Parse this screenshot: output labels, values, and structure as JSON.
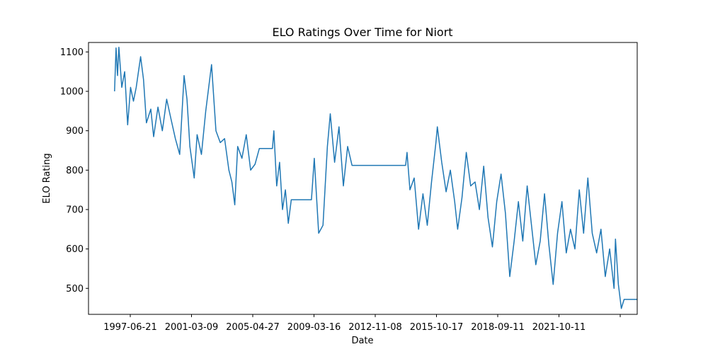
{
  "chart_data": {
    "type": "line",
    "title": "ELO Ratings Over Time for Niort",
    "xlabel": "Date",
    "ylabel": "ELO Rating",
    "x_tick_labels": [
      "1997-06-21",
      "2001-03-09",
      "2005-04-27",
      "2009-03-16",
      "2012-11-08",
      "2015-10-17",
      "2018-09-11",
      "2021-10-11",
      ""
    ],
    "y_ticks": [
      500,
      600,
      700,
      800,
      900,
      1000,
      1100
    ],
    "ylim": [
      434,
      1124
    ],
    "xlim": [
      "1994-06-01",
      "2026-01-01"
    ],
    "grid": false,
    "series": [
      {
        "color": "#1f77b4",
        "points": [
          [
            "1995-12-01",
            1000
          ],
          [
            "1996-01-01",
            1110
          ],
          [
            "1996-02-01",
            1040
          ],
          [
            "1996-03-01",
            1112
          ],
          [
            "1996-05-01",
            1010
          ],
          [
            "1996-07-01",
            1050
          ],
          [
            "1996-09-01",
            915
          ],
          [
            "1996-11-01",
            1010
          ],
          [
            "1997-01-01",
            975
          ],
          [
            "1997-03-01",
            1010
          ],
          [
            "1997-06-01",
            1088
          ],
          [
            "1997-08-01",
            1030
          ],
          [
            "1997-10-01",
            920
          ],
          [
            "1998-01-01",
            955
          ],
          [
            "1998-03-01",
            885
          ],
          [
            "1998-06-01",
            960
          ],
          [
            "1998-09-01",
            900
          ],
          [
            "1998-12-01",
            980
          ],
          [
            "1999-03-01",
            930
          ],
          [
            "1999-06-01",
            880
          ],
          [
            "1999-09-01",
            840
          ],
          [
            "1999-12-01",
            1040
          ],
          [
            "2000-02-01",
            980
          ],
          [
            "2000-04-01",
            860
          ],
          [
            "2000-07-01",
            780
          ],
          [
            "2000-09-01",
            890
          ],
          [
            "2000-12-01",
            840
          ],
          [
            "2001-03-01",
            950
          ],
          [
            "2001-07-01",
            1068
          ],
          [
            "2001-10-01",
            900
          ],
          [
            "2002-01-01",
            870
          ],
          [
            "2002-04-01",
            880
          ],
          [
            "2002-07-01",
            800
          ],
          [
            "2002-09-01",
            770
          ],
          [
            "2002-11-01",
            712
          ],
          [
            "2003-01-01",
            860
          ],
          [
            "2003-04-01",
            830
          ],
          [
            "2003-07-01",
            890
          ],
          [
            "2003-10-01",
            800
          ],
          [
            "2004-01-01",
            815
          ],
          [
            "2004-04-01",
            855
          ],
          [
            "2005-01-01",
            855
          ],
          [
            "2005-02-01",
            900
          ],
          [
            "2005-04-01",
            760
          ],
          [
            "2005-06-01",
            820
          ],
          [
            "2005-08-01",
            700
          ],
          [
            "2005-10-01",
            750
          ],
          [
            "2005-12-01",
            665
          ],
          [
            "2006-02-01",
            725
          ],
          [
            "2007-04-01",
            725
          ],
          [
            "2007-06-01",
            830
          ],
          [
            "2007-09-01",
            640
          ],
          [
            "2007-12-01",
            660
          ],
          [
            "2008-03-01",
            860
          ],
          [
            "2008-05-01",
            943
          ],
          [
            "2008-08-01",
            820
          ],
          [
            "2008-11-01",
            910
          ],
          [
            "2009-02-01",
            760
          ],
          [
            "2009-05-01",
            860
          ],
          [
            "2009-08-01",
            812
          ],
          [
            "2012-09-01",
            812
          ],
          [
            "2012-10-01",
            845
          ],
          [
            "2012-12-01",
            750
          ],
          [
            "2013-03-01",
            780
          ],
          [
            "2013-06-01",
            650
          ],
          [
            "2013-09-01",
            740
          ],
          [
            "2013-12-01",
            660
          ],
          [
            "2014-03-01",
            770
          ],
          [
            "2014-06-01",
            870
          ],
          [
            "2014-07-01",
            910
          ],
          [
            "2014-10-01",
            820
          ],
          [
            "2015-01-01",
            745
          ],
          [
            "2015-04-01",
            800
          ],
          [
            "2015-07-01",
            720
          ],
          [
            "2015-09-01",
            650
          ],
          [
            "2015-12-01",
            730
          ],
          [
            "2016-03-01",
            845
          ],
          [
            "2016-06-01",
            760
          ],
          [
            "2016-09-01",
            770
          ],
          [
            "2016-12-01",
            700
          ],
          [
            "2017-03-01",
            810
          ],
          [
            "2017-06-01",
            680
          ],
          [
            "2017-09-01",
            605
          ],
          [
            "2017-12-01",
            720
          ],
          [
            "2018-03-01",
            790
          ],
          [
            "2018-06-01",
            690
          ],
          [
            "2018-09-01",
            530
          ],
          [
            "2018-12-01",
            620
          ],
          [
            "2019-03-01",
            720
          ],
          [
            "2019-06-01",
            620
          ],
          [
            "2019-09-01",
            760
          ],
          [
            "2019-12-01",
            660
          ],
          [
            "2020-03-01",
            560
          ],
          [
            "2020-06-01",
            620
          ],
          [
            "2020-09-01",
            740
          ],
          [
            "2020-12-01",
            610
          ],
          [
            "2021-03-01",
            510
          ],
          [
            "2021-06-01",
            640
          ],
          [
            "2021-09-01",
            720
          ],
          [
            "2021-12-01",
            590
          ],
          [
            "2022-03-01",
            650
          ],
          [
            "2022-06-01",
            600
          ],
          [
            "2022-09-01",
            750
          ],
          [
            "2022-12-01",
            640
          ],
          [
            "2023-03-01",
            780
          ],
          [
            "2023-06-01",
            640
          ],
          [
            "2023-09-01",
            590
          ],
          [
            "2023-12-01",
            650
          ],
          [
            "2024-03-01",
            530
          ],
          [
            "2024-06-01",
            600
          ],
          [
            "2024-09-01",
            500
          ],
          [
            "2024-10-01",
            625
          ],
          [
            "2024-12-01",
            510
          ],
          [
            "2025-02-01",
            449
          ],
          [
            "2025-04-01",
            472
          ],
          [
            "2027-06-01",
            472
          ]
        ]
      }
    ]
  }
}
